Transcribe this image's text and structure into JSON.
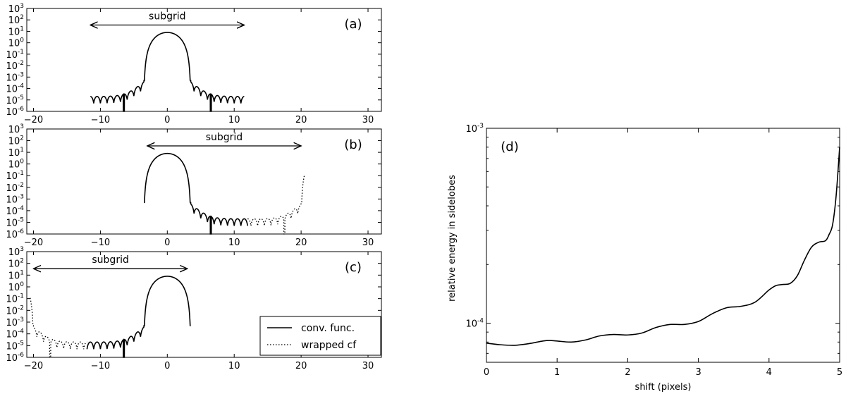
{
  "chart_data": [
    {
      "type": "line",
      "panel": "(a)",
      "xlim": [
        -21,
        32
      ],
      "ylim_log10": [
        -6,
        3
      ],
      "yscale": "log",
      "xticks": [
        "−20",
        "−10",
        "0",
        "10",
        "20",
        "30"
      ],
      "xtick_values": [
        -20,
        -10,
        0,
        10,
        20,
        30
      ],
      "yticks": [
        {
          "base": "10",
          "exp": "3"
        },
        {
          "base": "10",
          "exp": "2"
        },
        {
          "base": "10",
          "exp": "1"
        },
        {
          "base": "10",
          "exp": "0"
        },
        {
          "base": "10",
          "exp": "-1"
        },
        {
          "base": "10",
          "exp": "-2"
        },
        {
          "base": "10",
          "exp": "-3"
        },
        {
          "base": "10",
          "exp": "-4"
        },
        {
          "base": "10",
          "exp": "-5"
        },
        {
          "base": "10",
          "exp": "-6"
        }
      ],
      "ytick_values": [
        3,
        2,
        1,
        0,
        -1,
        -2,
        -3,
        -4,
        -5,
        -6
      ],
      "annotation": {
        "text": "subgrid",
        "x_from": -11.5,
        "x_to": 11.5
      },
      "series": [
        {
          "style": "solid",
          "x_range": [
            -11.5,
            11.5
          ],
          "center": 0,
          "peak": 8,
          "mainlobe_halfwidth": 3.5,
          "sidelobe_level": 2e-05,
          "null_positions": [
            -6.5,
            6.5
          ]
        }
      ]
    },
    {
      "type": "line",
      "panel": "(b)",
      "xlim": [
        -21,
        32
      ],
      "ylim_log10": [
        -6,
        3
      ],
      "yscale": "log",
      "xticks": [
        "−20",
        "−10",
        "0",
        "10",
        "20",
        "30"
      ],
      "xtick_values": [
        -20,
        -10,
        0,
        10,
        20,
        30
      ],
      "yticks": [
        {
          "base": "10",
          "exp": "3"
        },
        {
          "base": "10",
          "exp": "2"
        },
        {
          "base": "10",
          "exp": "1"
        },
        {
          "base": "10",
          "exp": "0"
        },
        {
          "base": "10",
          "exp": "-1"
        },
        {
          "base": "10",
          "exp": "-2"
        },
        {
          "base": "10",
          "exp": "-3"
        },
        {
          "base": "10",
          "exp": "-4"
        },
        {
          "base": "10",
          "exp": "-5"
        },
        {
          "base": "10",
          "exp": "-6"
        }
      ],
      "ytick_values": [
        3,
        2,
        1,
        0,
        -1,
        -2,
        -3,
        -4,
        -5,
        -6
      ],
      "annotation": {
        "text": "subgrid",
        "x_from": -3,
        "x_to": 20
      },
      "series": [
        {
          "style": "solid",
          "x_range": [
            -3.5,
            12
          ],
          "center": 0,
          "peak": 8,
          "mainlobe_halfwidth": 3.5,
          "sidelobe_level": 2e-05,
          "null_positions": [
            6.5
          ]
        },
        {
          "style": "dotted",
          "x_range": [
            12,
            20.5
          ],
          "center": 23.5,
          "peak": 8,
          "mainlobe_halfwidth": 3.5,
          "sidelobe_level": 2e-05,
          "null_positions": [
            17.5
          ]
        }
      ]
    },
    {
      "type": "line",
      "panel": "(c)",
      "xlim": [
        -21,
        32
      ],
      "ylim_log10": [
        -6,
        3
      ],
      "yscale": "log",
      "xticks": [
        "−20",
        "−10",
        "0",
        "10",
        "20",
        "30"
      ],
      "xtick_values": [
        -20,
        -10,
        0,
        10,
        20,
        30
      ],
      "yticks": [
        {
          "base": "10",
          "exp": "3"
        },
        {
          "base": "10",
          "exp": "2"
        },
        {
          "base": "10",
          "exp": "1"
        },
        {
          "base": "10",
          "exp": "0"
        },
        {
          "base": "10",
          "exp": "-1"
        },
        {
          "base": "10",
          "exp": "-2"
        },
        {
          "base": "10",
          "exp": "-3"
        },
        {
          "base": "10",
          "exp": "-4"
        },
        {
          "base": "10",
          "exp": "-5"
        },
        {
          "base": "10",
          "exp": "-6"
        }
      ],
      "ytick_values": [
        3,
        2,
        1,
        0,
        -1,
        -2,
        -3,
        -4,
        -5,
        -6
      ],
      "annotation": {
        "text": "subgrid",
        "x_from": -20,
        "x_to": 3
      },
      "legend": {
        "placement": "lower-right",
        "entries": [
          {
            "label": "conv. func.",
            "style": "solid"
          },
          {
            "label": "wrapped cf",
            "style": "dotted"
          }
        ]
      },
      "series": [
        {
          "style": "solid",
          "x_range": [
            -12,
            3.5
          ],
          "center": 0,
          "peak": 8,
          "mainlobe_halfwidth": 3.5,
          "sidelobe_level": 2e-05,
          "null_positions": [
            -6.5
          ]
        },
        {
          "style": "dotted",
          "x_range": [
            -20.5,
            -12
          ],
          "center": -23.5,
          "peak": 8,
          "mainlobe_halfwidth": 3.5,
          "sidelobe_level": 2e-05,
          "null_positions": [
            -17.5
          ]
        }
      ]
    },
    {
      "type": "line",
      "panel": "(d)",
      "xlabel": "shift (pixels)",
      "ylabel": "relative energy in sidelobes",
      "xlim": [
        0,
        5
      ],
      "yscale": "log",
      "ylim": [
        6.3e-05,
        0.001
      ],
      "xticks": [
        "0",
        "1",
        "2",
        "3",
        "4",
        "5"
      ],
      "xtick_values": [
        0,
        1,
        2,
        3,
        4,
        5
      ],
      "yticks": [
        {
          "base": "10",
          "exp": "-3"
        },
        {
          "base": "10",
          "exp": "-4"
        }
      ],
      "ytick_values": [
        0.001,
        0.0001
      ],
      "series": [
        {
          "style": "solid",
          "x": [
            0,
            0.2,
            0.4,
            0.6,
            0.8,
            0.9,
            1.0,
            1.2,
            1.4,
            1.6,
            1.8,
            2.0,
            2.2,
            2.4,
            2.6,
            2.8,
            3.0,
            3.2,
            3.4,
            3.6,
            3.8,
            4.0,
            4.1,
            4.2,
            4.3,
            4.4,
            4.5,
            4.6,
            4.7,
            4.8,
            4.85,
            4.9,
            4.95,
            5.0
          ],
          "y": [
            7.9e-05,
            7.75e-05,
            7.7e-05,
            7.85e-05,
            8.1e-05,
            8.15e-05,
            8.1e-05,
            8e-05,
            8.2e-05,
            8.6e-05,
            8.75e-05,
            8.7e-05,
            8.9e-05,
            9.5e-05,
            9.85e-05,
            9.85e-05,
            0.000102,
            0.000112,
            0.00012,
            0.000122,
            0.000128,
            0.000148,
            0.000156,
            0.000158,
            0.00016,
            0.000175,
            0.00021,
            0.000245,
            0.00026,
            0.000265,
            0.000285,
            0.00032,
            0.00045,
            0.0008
          ]
        }
      ]
    }
  ]
}
